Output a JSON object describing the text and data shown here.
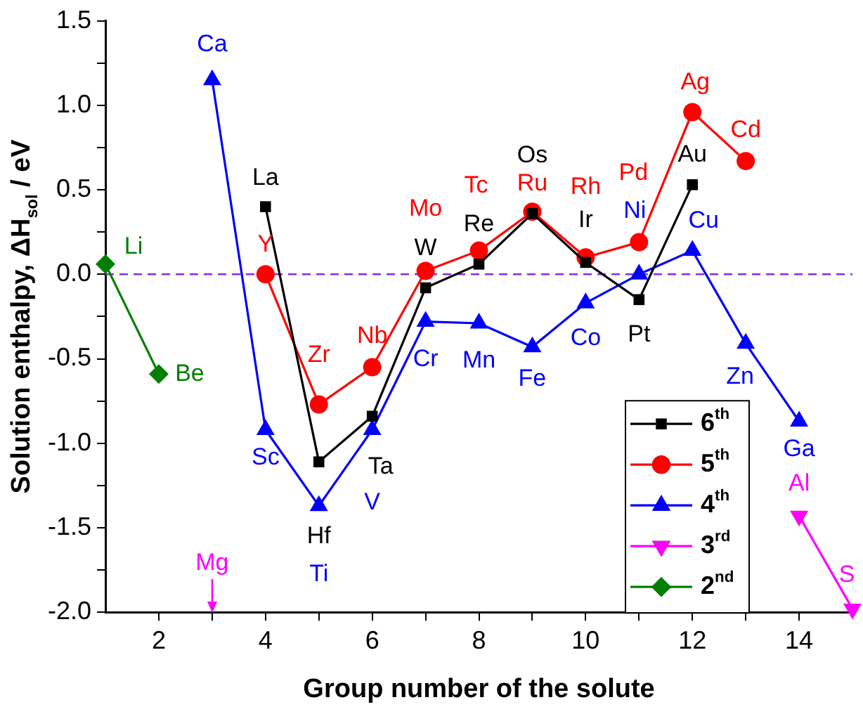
{
  "chart_data": {
    "type": "line",
    "xlabel": "Group number of the solute",
    "ylabel": "Solution enthalpy, ΔH$_{sol}$ / eV",
    "xlim": [
      1,
      15
    ],
    "xticks": [
      2,
      {
        "value": 3,
        "label": null
      },
      4,
      {
        "value": 5,
        "label": null
      },
      6,
      {
        "value": 7,
        "label": null
      },
      8,
      {
        "value": 9,
        "label": null
      },
      10,
      {
        "value": 11,
        "label": null
      },
      12,
      {
        "value": 13,
        "label": null
      },
      14
    ],
    "ylim": [
      -2.0,
      1.5
    ],
    "yticks": [
      {
        "value": -2.0,
        "label": "-2.0"
      },
      {
        "value": -1.75,
        "label": null
      },
      -1.5,
      {
        "value": -1.25,
        "label": null
      },
      {
        "value": -1.0,
        "label": "-1.0"
      },
      {
        "value": -0.75,
        "label": null
      },
      -0.5,
      {
        "value": -0.25,
        "label": null
      },
      {
        "value": 0,
        "label": "0.0"
      },
      {
        "value": 0.25,
        "label": null
      },
      0.5,
      {
        "value": 0.75,
        "label": null
      },
      {
        "value": 1.0,
        "label": "1.0"
      },
      {
        "value": 1.25,
        "label": null
      },
      1.5
    ],
    "grid": false,
    "legend": "bottom right",
    "series": [
      {
        "name": "6$^{th}$",
        "color": "#000000",
        "marker": "square",
        "x": [
          4,
          5,
          6,
          7,
          8,
          9,
          10,
          11,
          12
        ],
        "values": [
          0.4,
          -1.11,
          -0.84,
          -0.08,
          0.06,
          0.36,
          0.07,
          -0.15,
          0.53
        ]
      },
      {
        "name": "5$^{th}$",
        "color": "#ff0000",
        "marker": "circle",
        "x": [
          4,
          5,
          6,
          7,
          8,
          9,
          10,
          11,
          12,
          13
        ],
        "values": [
          0.0,
          -0.77,
          -0.55,
          0.02,
          0.14,
          0.37,
          0.1,
          0.19,
          0.96,
          0.67
        ]
      },
      {
        "name": "4$^{th}$",
        "color": "#0000ff",
        "marker": "triangle",
        "x": [
          3,
          4,
          5,
          6,
          7,
          8,
          9,
          10,
          11,
          12,
          13,
          14
        ],
        "values": [
          1.15,
          -0.92,
          -1.37,
          -0.92,
          -0.28,
          -0.29,
          -0.43,
          -0.17,
          0.0,
          0.14,
          -0.41,
          -0.87
        ]
      },
      {
        "name": "3$^{rd}$",
        "color": "#ff00ff",
        "marker": "triangle-down",
        "x": [
          14,
          15
        ],
        "values": [
          -1.43,
          -1.98
        ]
      },
      {
        "name": "2$^{nd}$",
        "color": "#008000",
        "marker": "diamond",
        "x": [
          1,
          2
        ],
        "values": [
          0.06,
          -0.59
        ]
      }
    ],
    "ref_lines": [
      {
        "axis": "y",
        "value": 0,
        "color": "#8a2be2",
        "line_style": "dashed"
      }
    ],
    "annotations": [
      {
        "text": "Li",
        "x": 1,
        "y": 0.06
      },
      {
        "text": "Be",
        "x": 2,
        "y": -0.59
      },
      {
        "text": "Ca",
        "x": 3,
        "y": 1.15
      },
      "Mg",
      {
        "text": "La",
        "x": 4,
        "y": 0.4
      },
      {
        "text": "Y",
        "x": 4,
        "y": 0.0
      },
      {
        "text": "Sc",
        "x": 4,
        "y": -0.92
      },
      {
        "text": "Hf",
        "x": 5,
        "y": -1.11
      },
      {
        "text": "Zr",
        "x": 5,
        "y": -0.77
      },
      {
        "text": "Ti",
        "x": 5,
        "y": -1.37
      },
      {
        "text": "Ta",
        "x": 6,
        "y": -0.84
      },
      {
        "text": "Nb",
        "x": 6,
        "y": -0.55
      },
      {
        "text": "V",
        "x": 6,
        "y": -0.92
      },
      {
        "text": "W",
        "x": 7,
        "y": -0.08
      },
      {
        "text": "Mo",
        "x": 7,
        "y": 0.02
      },
      {
        "text": "Cr",
        "x": 7,
        "y": -0.28
      },
      {
        "text": "Re",
        "x": 8,
        "y": 0.06
      },
      {
        "text": "Tc",
        "x": 8,
        "y": 0.14
      },
      {
        "text": "Mn",
        "x": 8,
        "y": -0.29
      },
      {
        "text": "Os",
        "x": 9,
        "y": 0.36
      },
      {
        "text": "Ru",
        "x": 9,
        "y": 0.37
      },
      {
        "text": "Fe",
        "x": 9,
        "y": -0.43
      },
      {
        "text": "Ir",
        "x": 10,
        "y": 0.07
      },
      {
        "text": "Rh",
        "x": 10,
        "y": 0.1
      },
      {
        "text": "Co",
        "x": 10,
        "y": -0.17
      },
      {
        "text": "Pt",
        "x": 11,
        "y": -0.15
      },
      {
        "text": "Pd",
        "x": 11,
        "y": 0.19
      },
      {
        "text": "Ni",
        "x": 11,
        "y": 0.0
      },
      {
        "text": "Au",
        "x": 12,
        "y": 0.53
      },
      {
        "text": "Ag",
        "x": 12,
        "y": 0.96
      },
      {
        "text": "Cu",
        "x": 12,
        "y": 0.14
      },
      {
        "text": "Cd",
        "x": 13,
        "y": 0.67
      },
      {
        "text": "Zn",
        "x": 13,
        "y": -0.41
      },
      {
        "text": "Ga",
        "x": 14,
        "y": -0.87
      },
      {
        "text": "Al",
        "x": 14,
        "y": -1.43
      },
      {
        "text": "S",
        "x": 15,
        "y": -1.98
      }
    ]
  }
}
